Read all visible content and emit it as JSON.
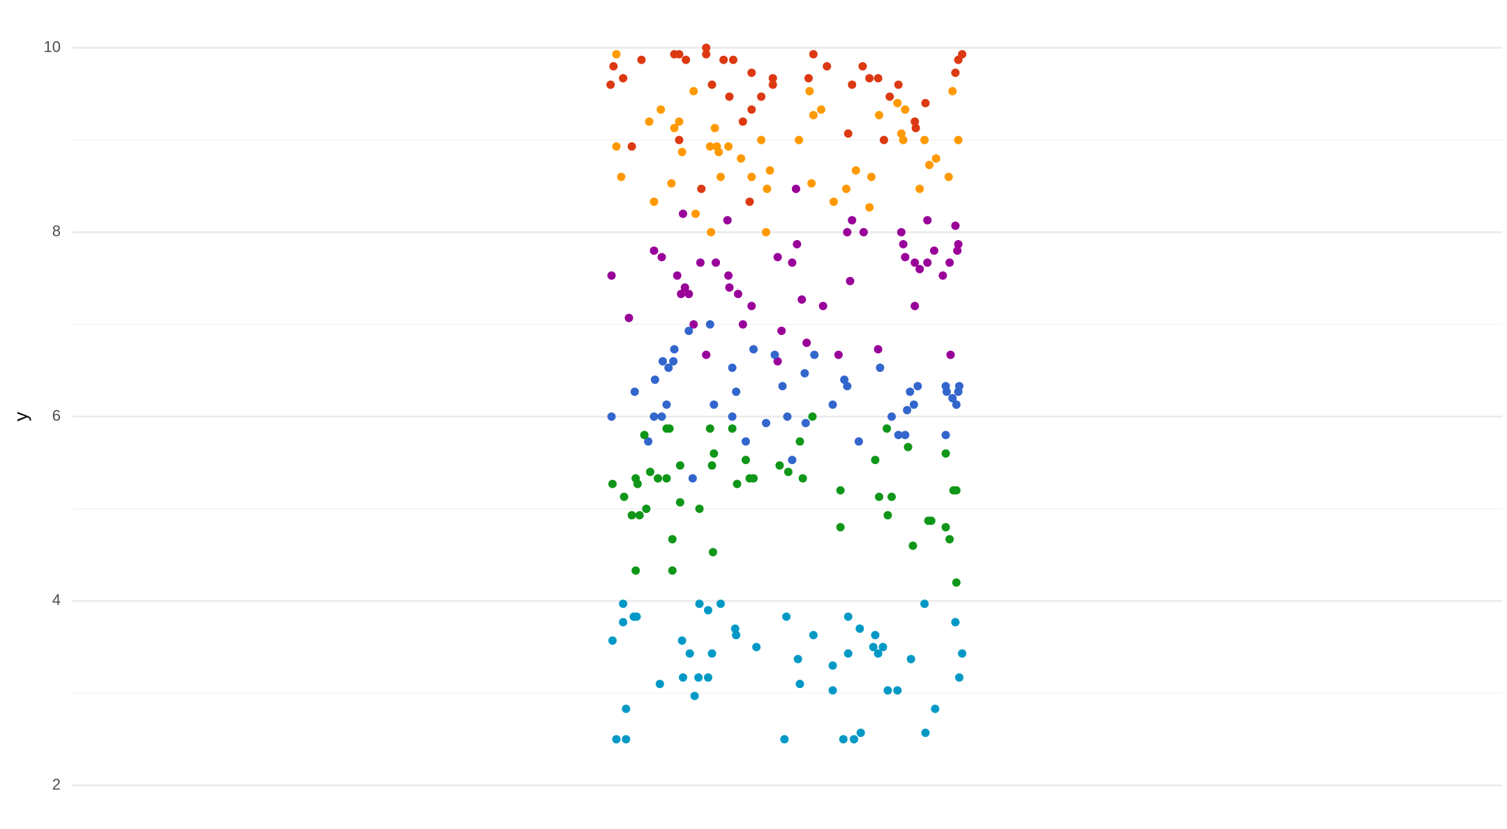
{
  "chart_data": {
    "type": "scatter",
    "ylabel": "y",
    "xlim": [
      75,
      1555
    ],
    "ylim": [
      1.89,
      10.11
    ],
    "yticks": [
      2,
      4,
      6,
      8,
      10
    ],
    "y_minor_ticks": [
      3,
      5,
      7,
      9
    ],
    "grid": true,
    "series": [
      {
        "color": "#dc3912",
        "x": [
          632,
          635,
          645,
          654,
          664,
          698,
          703,
          710,
          703,
          726,
          731,
          731,
          737,
          749,
          755,
          759,
          769,
          778,
          778,
          776,
          788,
          800,
          800,
          837,
          842,
          856,
          878,
          882,
          893,
          900,
          909,
          915,
          921,
          930,
          947,
          948,
          958,
          989,
          992,
          996
        ],
        "values": [
          9.6,
          9.8,
          9.67,
          8.93,
          9.87,
          9.93,
          9.93,
          9.87,
          9.0,
          8.47,
          10,
          9.93,
          9.6,
          9.87,
          9.47,
          9.87,
          9.2,
          9.73,
          9.33,
          8.33,
          9.47,
          9.67,
          9.6,
          9.67,
          9.93,
          9.8,
          9.07,
          9.6,
          9.8,
          9.67,
          9.67,
          9.0,
          9.47,
          9.6,
          9.2,
          9.13,
          9.4,
          9.73,
          9.87,
          9.93
        ]
      },
      {
        "color": "#ff9900",
        "x": [
          638,
          638,
          643,
          672,
          677,
          684,
          695,
          698,
          703,
          706,
          718,
          720,
          735,
          736,
          740,
          742,
          744,
          746,
          754,
          767,
          778,
          788,
          793,
          794,
          797,
          827,
          838,
          840,
          842,
          850,
          863,
          876,
          886,
          900,
          902,
          910,
          929,
          933,
          935,
          937,
          952,
          957,
          962,
          969,
          982,
          986,
          992
        ],
        "values": [
          9.93,
          8.93,
          8.6,
          9.2,
          8.33,
          9.33,
          8.53,
          9.13,
          9.2,
          8.87,
          9.53,
          8.2,
          8.93,
          8.0,
          9.13,
          8.93,
          8.87,
          8.6,
          8.93,
          8.8,
          8.6,
          9.0,
          8.0,
          8.47,
          8.67,
          9.0,
          9.53,
          8.53,
          9.27,
          9.33,
          8.33,
          8.47,
          8.67,
          8.27,
          8.6,
          9.27,
          9.4,
          9.07,
          9.0,
          9.33,
          8.47,
          9.0,
          8.73,
          8.8,
          8.6,
          9.53,
          9.0
        ]
      },
      {
        "color": "#990099",
        "x": [
          633,
          651,
          677,
          685,
          701,
          705,
          707,
          709,
          713,
          718,
          725,
          731,
          741,
          753,
          754,
          755,
          764,
          769,
          778,
          805,
          805,
          809,
          820,
          824,
          825,
          830,
          835,
          852,
          868,
          877,
          880,
          882,
          894,
          909,
          933,
          935,
          937,
          947,
          947,
          952,
          960,
          960,
          967,
          976,
          983,
          984,
          989,
          991,
          992
        ],
        "values": [
          7.53,
          7.07,
          7.8,
          7.73,
          7.53,
          7.33,
          8.2,
          7.4,
          7.33,
          7.0,
          7.67,
          6.67,
          7.67,
          8.13,
          7.53,
          7.4,
          7.33,
          7.0,
          7.2,
          7.73,
          6.6,
          6.93,
          7.67,
          8.47,
          7.87,
          7.27,
          6.8,
          7.2,
          6.67,
          8.0,
          7.47,
          8.13,
          8.0,
          6.73,
          8.0,
          7.87,
          7.73,
          7.2,
          7.67,
          7.6,
          8.13,
          7.67,
          7.8,
          7.53,
          7.67,
          6.67,
          8.07,
          7.8,
          7.87
        ]
      },
      {
        "color": "#3366cc",
        "x": [
          633,
          657,
          671,
          677,
          678,
          685,
          686,
          690,
          692,
          697,
          698,
          713,
          717,
          735,
          739,
          758,
          758,
          762,
          772,
          780,
          793,
          802,
          810,
          815,
          820,
          833,
          834,
          843,
          862,
          874,
          877,
          889,
          911,
          923,
          930,
          937,
          939,
          942,
          946,
          950,
          979,
          979,
          980,
          986,
          990,
          992,
          993
        ],
        "values": [
          6.0,
          6.27,
          5.73,
          6.0,
          6.4,
          6.0,
          6.6,
          6.13,
          6.53,
          6.6,
          6.73,
          6.93,
          5.33,
          7.0,
          6.13,
          6.53,
          6.0,
          6.27,
          5.73,
          6.73,
          5.93,
          6.67,
          6.33,
          6.0,
          5.53,
          6.47,
          5.93,
          6.67,
          6.13,
          6.4,
          6.33,
          5.73,
          6.53,
          6.0,
          5.8,
          5.8,
          6.07,
          6.27,
          6.13,
          6.33,
          5.8,
          6.33,
          6.27,
          6.2,
          6.13,
          6.27,
          6.33
        ]
      },
      {
        "color": "#109618",
        "x": [
          634,
          646,
          654,
          658,
          658,
          660,
          662,
          667,
          669,
          673,
          681,
          690,
          690,
          693,
          696,
          696,
          704,
          704,
          724,
          735,
          737,
          738,
          739,
          758,
          763,
          772,
          776,
          780,
          807,
          816,
          828,
          831,
          841,
          870,
          870,
          906,
          910,
          918,
          919,
          923,
          940,
          945,
          961,
          964,
          979,
          979,
          983,
          987,
          990,
          990
        ],
        "values": [
          5.27,
          5.13,
          4.93,
          5.33,
          4.33,
          5.27,
          4.93,
          5.8,
          5.0,
          5.4,
          5.33,
          5.87,
          5.33,
          5.87,
          4.67,
          4.33,
          5.47,
          5.07,
          5.0,
          5.87,
          5.47,
          4.53,
          5.6,
          5.87,
          5.27,
          5.53,
          5.33,
          5.33,
          5.47,
          5.4,
          5.73,
          5.33,
          6.0,
          5.2,
          4.8,
          5.53,
          5.13,
          5.87,
          4.93,
          5.13,
          5.67,
          4.6,
          4.87,
          4.87,
          4.8,
          5.6,
          4.67,
          5.2,
          5.2,
          4.2
        ]
      },
      {
        "color": "#0099c6",
        "x": [
          634,
          638,
          645,
          645,
          648,
          648,
          656,
          659,
          683,
          706,
          707,
          714,
          719,
          723,
          724,
          733,
          733,
          737,
          746,
          761,
          762,
          783,
          812,
          814,
          826,
          828,
          842,
          862,
          862,
          873,
          878,
          878,
          884,
          890,
          891,
          904,
          906,
          909,
          914,
          919,
          929,
          943,
          957,
          958,
          968,
          989,
          993,
          996
        ],
        "values": [
          3.57,
          2.5,
          3.97,
          3.77,
          2.83,
          2.5,
          3.83,
          3.83,
          3.1,
          3.57,
          3.17,
          3.43,
          2.97,
          3.17,
          3.97,
          3.17,
          3.9,
          3.43,
          3.97,
          3.7,
          3.63,
          3.5,
          2.5,
          3.83,
          3.37,
          3.1,
          3.63,
          3.3,
          3.03,
          2.5,
          3.43,
          3.83,
          2.5,
          3.7,
          2.57,
          3.5,
          3.63,
          3.43,
          3.5,
          3.03,
          3.03,
          3.37,
          3.97,
          2.57,
          2.83,
          3.77,
          3.17,
          3.43
        ]
      }
    ]
  }
}
